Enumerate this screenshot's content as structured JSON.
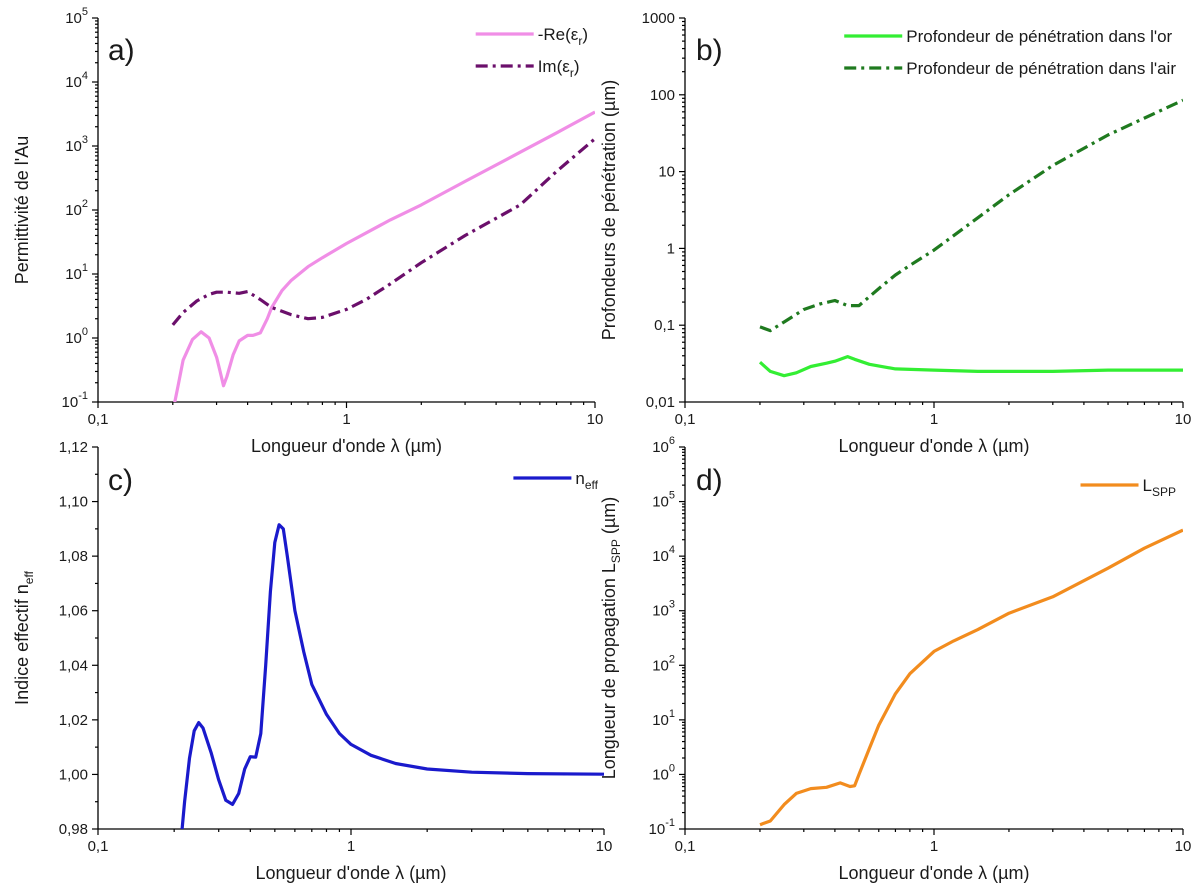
{
  "chart_data": [
    {
      "panel": "a)",
      "type": "line",
      "xlabel": "Longueur d'onde λ (µm)",
      "ylabel": "Permittivité de l'Au",
      "xscale": "log",
      "yscale": "log",
      "xlim": [
        0.1,
        10
      ],
      "ylim": [
        0.1,
        100000
      ],
      "xticks": [
        {
          "v": 0.1,
          "label": "0,1"
        },
        {
          "v": 1,
          "label": "1"
        },
        {
          "v": 10,
          "label": "10"
        }
      ],
      "yticks": [
        {
          "v": 0.1,
          "base": "10",
          "exp": "-1"
        },
        {
          "v": 1,
          "base": "10",
          "exp": "0"
        },
        {
          "v": 10,
          "base": "10",
          "exp": "1"
        },
        {
          "v": 100,
          "base": "10",
          "exp": "2"
        },
        {
          "v": 1000,
          "base": "10",
          "exp": "3"
        },
        {
          "v": 10000,
          "base": "10",
          "exp": "4"
        },
        {
          "v": 100000,
          "base": "10",
          "exp": "5"
        }
      ],
      "legend_position": "top-right",
      "series": [
        {
          "name": "-Re(εr)",
          "label_main": "-Re(ε",
          "label_sub": "r",
          "label_tail": ")",
          "color": "#f08ee6",
          "style": "solid",
          "x": [
            0.2,
            0.21,
            0.22,
            0.24,
            0.26,
            0.28,
            0.3,
            0.31,
            0.32,
            0.33,
            0.35,
            0.37,
            0.4,
            0.42,
            0.45,
            0.48,
            0.5,
            0.55,
            0.6,
            0.7,
            0.8,
            1.0,
            1.5,
            2,
            3,
            5,
            7,
            10
          ],
          "y": [
            0.07,
            0.18,
            0.45,
            0.95,
            1.25,
            1.0,
            0.5,
            0.3,
            0.18,
            0.25,
            0.55,
            0.9,
            1.1,
            1.1,
            1.2,
            2.0,
            3.0,
            5.5,
            8.0,
            13,
            18,
            30,
            70,
            120,
            280,
            800,
            1600,
            3400
          ]
        },
        {
          "name": "Im(εr)",
          "label_main": "Im(ε",
          "label_sub": "r",
          "label_tail": ")",
          "color": "#6b0f6b",
          "style": "dashdot",
          "x": [
            0.2,
            0.22,
            0.25,
            0.28,
            0.3,
            0.33,
            0.37,
            0.4,
            0.45,
            0.5,
            0.6,
            0.7,
            0.8,
            1.0,
            1.2,
            1.5,
            2,
            3,
            5,
            7,
            10
          ],
          "y": [
            1.6,
            2.5,
            3.8,
            4.8,
            5.2,
            5.2,
            5.0,
            5.3,
            4.0,
            3.0,
            2.3,
            2.0,
            2.1,
            2.8,
            4.0,
            7.0,
            15,
            40,
            120,
            400,
            1300
          ]
        }
      ]
    },
    {
      "panel": "b)",
      "type": "line",
      "xlabel": "Longueur d'onde λ (µm)",
      "ylabel": "Profondeurs de pénétration (µm)",
      "xscale": "log",
      "yscale": "log",
      "xlim": [
        0.1,
        10
      ],
      "ylim": [
        0.01,
        1000
      ],
      "xticks": [
        {
          "v": 0.1,
          "label": "0,1"
        },
        {
          "v": 1,
          "label": "1"
        },
        {
          "v": 10,
          "label": "10"
        }
      ],
      "yticks": [
        {
          "v": 0.01,
          "label": "0,01"
        },
        {
          "v": 0.1,
          "label": "0,1"
        },
        {
          "v": 1,
          "label": "1"
        },
        {
          "v": 10,
          "label": "10"
        },
        {
          "v": 100,
          "label": "100"
        },
        {
          "v": 1000,
          "label": "1000"
        }
      ],
      "legend_position": "top-right",
      "series": [
        {
          "name": "Profondeur de pénétration dans l'or",
          "label_main": "Profondeur de pénétration dans l'or",
          "label_sub": "",
          "label_tail": "",
          "color": "#33ee33",
          "style": "solid",
          "x": [
            0.2,
            0.22,
            0.25,
            0.28,
            0.32,
            0.37,
            0.4,
            0.45,
            0.48,
            0.55,
            0.7,
            1.0,
            1.5,
            2,
            3,
            5,
            10
          ],
          "y": [
            0.033,
            0.025,
            0.022,
            0.024,
            0.029,
            0.032,
            0.034,
            0.039,
            0.036,
            0.031,
            0.027,
            0.026,
            0.025,
            0.025,
            0.025,
            0.026,
            0.026
          ]
        },
        {
          "name": "Profondeur de pénétration dans l'air",
          "label_main": "Profondeur de pénétration dans l'air",
          "label_sub": "",
          "label_tail": "",
          "color": "#1f7a1f",
          "style": "dashdot",
          "x": [
            0.2,
            0.22,
            0.25,
            0.3,
            0.35,
            0.4,
            0.45,
            0.5,
            0.6,
            0.7,
            0.8,
            1.0,
            1.5,
            2,
            3,
            5,
            10
          ],
          "y": [
            0.095,
            0.085,
            0.11,
            0.16,
            0.19,
            0.21,
            0.18,
            0.18,
            0.3,
            0.45,
            0.6,
            0.95,
            2.5,
            5,
            12,
            30,
            85
          ]
        }
      ]
    },
    {
      "panel": "c)",
      "type": "line",
      "xlabel": "Longueur d'onde λ (µm)",
      "ylabel_main": "Indice effectif n",
      "ylabel_sub": "eff",
      "xscale": "log",
      "yscale": "linear",
      "xlim": [
        0.1,
        10
      ],
      "ylim": [
        0.98,
        1.12
      ],
      "xticks": [
        {
          "v": 0.1,
          "label": "0,1"
        },
        {
          "v": 1,
          "label": "1"
        },
        {
          "v": 10,
          "label": "10"
        }
      ],
      "yticks": [
        {
          "v": 0.98,
          "label": "0,98"
        },
        {
          "v": 1.0,
          "label": "1,00"
        },
        {
          "v": 1.02,
          "label": "1,02"
        },
        {
          "v": 1.04,
          "label": "1,04"
        },
        {
          "v": 1.06,
          "label": "1,06"
        },
        {
          "v": 1.08,
          "label": "1,08"
        },
        {
          "v": 1.1,
          "label": "1,10"
        },
        {
          "v": 1.12,
          "label": "1,12"
        }
      ],
      "legend_position": "top-right",
      "series": [
        {
          "name": "neff",
          "label_main": "n",
          "label_sub": "eff",
          "label_tail": "",
          "color": "#1a1acc",
          "style": "solid",
          "x": [
            0.215,
            0.22,
            0.23,
            0.24,
            0.25,
            0.26,
            0.28,
            0.3,
            0.32,
            0.34,
            0.36,
            0.38,
            0.4,
            0.42,
            0.44,
            0.46,
            0.48,
            0.5,
            0.52,
            0.54,
            0.56,
            0.6,
            0.65,
            0.7,
            0.8,
            0.9,
            1.0,
            1.2,
            1.5,
            2,
            3,
            5,
            10
          ],
          "y": [
            0.98,
            0.99,
            1.006,
            1.016,
            1.019,
            1.017,
            1.008,
            0.998,
            0.9905,
            0.989,
            0.993,
            1.002,
            1.0065,
            1.0063,
            1.015,
            1.04,
            1.067,
            1.085,
            1.0915,
            1.09,
            1.08,
            1.06,
            1.045,
            1.033,
            1.022,
            1.015,
            1.011,
            1.007,
            1.004,
            1.002,
            1.0008,
            1.0003,
            1.0001
          ]
        }
      ]
    },
    {
      "panel": "d)",
      "type": "line",
      "xlabel": "Longueur d'onde λ (µm)",
      "ylabel_main": "Longueur de propagation L",
      "ylabel_sub": "SPP",
      "ylabel_tail": " (µm)",
      "xscale": "log",
      "yscale": "log",
      "xlim": [
        0.1,
        10
      ],
      "ylim": [
        0.1,
        1000000
      ],
      "xticks": [
        {
          "v": 0.1,
          "label": "0,1"
        },
        {
          "v": 1,
          "label": "1"
        },
        {
          "v": 10,
          "label": "10"
        }
      ],
      "yticks": [
        {
          "v": 0.1,
          "base": "10",
          "exp": "-1"
        },
        {
          "v": 1,
          "base": "10",
          "exp": "0"
        },
        {
          "v": 10,
          "base": "10",
          "exp": "1"
        },
        {
          "v": 100,
          "base": "10",
          "exp": "2"
        },
        {
          "v": 1000,
          "base": "10",
          "exp": "3"
        },
        {
          "v": 10000,
          "base": "10",
          "exp": "4"
        },
        {
          "v": 100000,
          "base": "10",
          "exp": "5"
        },
        {
          "v": 1000000,
          "base": "10",
          "exp": "6"
        }
      ],
      "legend_position": "top-right",
      "series": [
        {
          "name": "LSPP",
          "label_main": "L",
          "label_sub": "SPP",
          "label_tail": "",
          "color": "#f28c1e",
          "style": "solid",
          "x": [
            0.2,
            0.22,
            0.25,
            0.28,
            0.32,
            0.37,
            0.42,
            0.46,
            0.48,
            0.5,
            0.55,
            0.6,
            0.7,
            0.8,
            1.0,
            1.2,
            1.5,
            2,
            3,
            5,
            7,
            10
          ],
          "y": [
            0.12,
            0.14,
            0.28,
            0.45,
            0.55,
            0.58,
            0.7,
            0.6,
            0.62,
            1.0,
            3.0,
            8.0,
            30,
            70,
            180,
            280,
            450,
            900,
            1800,
            6000,
            14000,
            30000
          ]
        }
      ]
    }
  ]
}
